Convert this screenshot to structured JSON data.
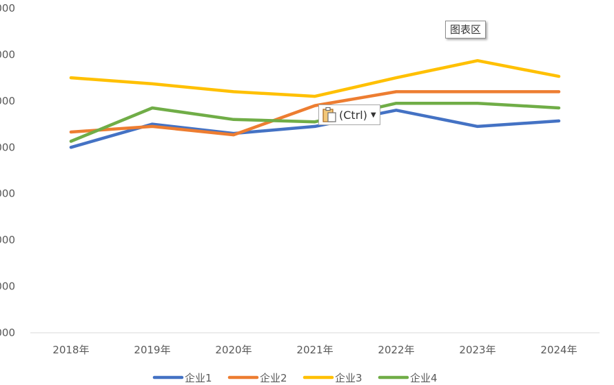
{
  "chart_data": {
    "type": "line",
    "title": "",
    "xlabel": "",
    "ylabel": "",
    "categories": [
      "2018年",
      "2019年",
      "2020年",
      "2021年",
      "2022年",
      "2023年",
      "2024年"
    ],
    "y_tick_labels": [
      "000",
      "000",
      "000",
      "000",
      "000",
      "000",
      "000",
      "000"
    ],
    "ylim": [
      0,
      7
    ],
    "grid": false,
    "legend": "bottom",
    "series": [
      {
        "name": "企业1",
        "color": "#4472C4",
        "values": [
          4.0,
          4.5,
          4.3,
          4.45,
          4.8,
          4.45,
          4.57
        ]
      },
      {
        "name": "企业2",
        "color": "#ED7D31",
        "values": [
          4.33,
          4.45,
          4.27,
          4.9,
          5.2,
          5.2,
          5.2
        ]
      },
      {
        "name": "企业3",
        "color": "#FFC000",
        "values": [
          5.5,
          5.37,
          5.2,
          5.1,
          5.5,
          5.87,
          5.53
        ]
      },
      {
        "name": "企业4",
        "color": "#70AD47",
        "values": [
          4.13,
          4.85,
          4.6,
          4.55,
          4.95,
          4.95,
          4.85
        ]
      }
    ]
  },
  "chart_area_tooltip": "图表区",
  "paste_options": {
    "label": "(Ctrl)",
    "icon": "clipboard-icon"
  }
}
